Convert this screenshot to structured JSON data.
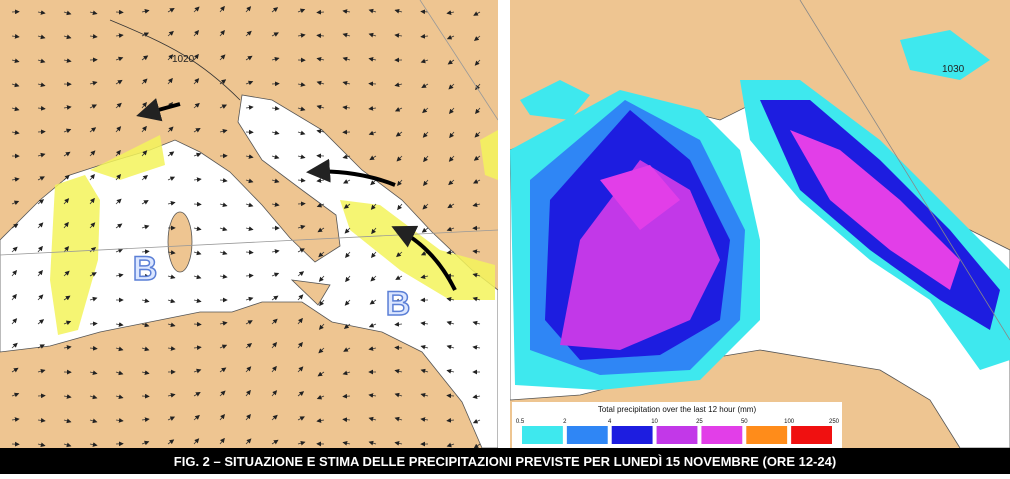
{
  "left_map": {
    "isobar_label": "1020",
    "pressure_labels": [
      "B",
      "B"
    ]
  },
  "right_map": {
    "isobar_label": "1030"
  },
  "legend": {
    "title": "Total precipitation over the last 12 hour (mm)",
    "ticks": [
      "0.5",
      "2",
      "4",
      "10",
      "25",
      "50",
      "100",
      "250"
    ]
  },
  "caption": "FIG. 2 – SITUAZIONE E STIMA DELLE PRECIPITAZIONI PREVISTE PER LUNEDÌ 15 NOVEMBRE (ORE 12-24)"
}
